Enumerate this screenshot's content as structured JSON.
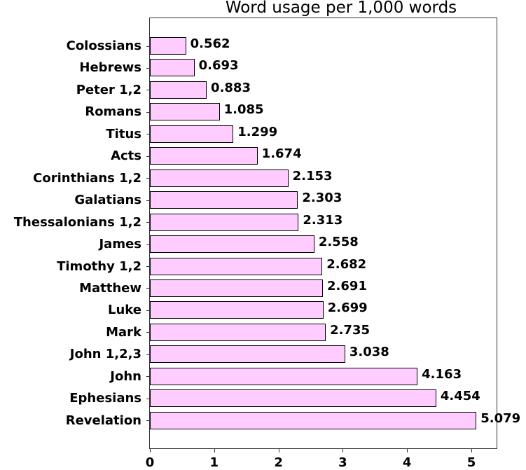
{
  "chart_data": {
    "type": "bar",
    "orientation": "horizontal",
    "title": "Word usage per 1,000 words",
    "xlabel": "",
    "ylabel": "",
    "categories": [
      "Colossians",
      "Hebrews",
      "Peter 1,2",
      "Romans",
      "Titus",
      "Acts",
      "Corinthians 1,2",
      "Galatians",
      "Thessalonians 1,2",
      "James",
      "Timothy 1,2",
      "Matthew",
      "Luke",
      "Mark",
      "John 1,2,3",
      "John",
      "Ephesians",
      "Revelation"
    ],
    "values": [
      0.562,
      0.693,
      0.883,
      1.085,
      1.299,
      1.674,
      2.153,
      2.303,
      2.313,
      2.558,
      2.682,
      2.691,
      2.699,
      2.735,
      3.038,
      4.163,
      4.454,
      5.079
    ],
    "value_labels": [
      "0.562",
      "0.693",
      "0.883",
      "1.085",
      "1.299",
      "1.674",
      "2.153",
      "2.303",
      "2.313",
      "2.558",
      "2.682",
      "2.691",
      "2.699",
      "2.735",
      "3.038",
      "4.163",
      "4.454",
      "5.079"
    ],
    "x_ticks": [
      "0",
      "1",
      "2",
      "3",
      "4",
      "5"
    ],
    "xlim": [
      0,
      5.4
    ],
    "grid": false,
    "legend": null,
    "bar_color": "#ffccff",
    "bar_edge_color": "#000000"
  }
}
